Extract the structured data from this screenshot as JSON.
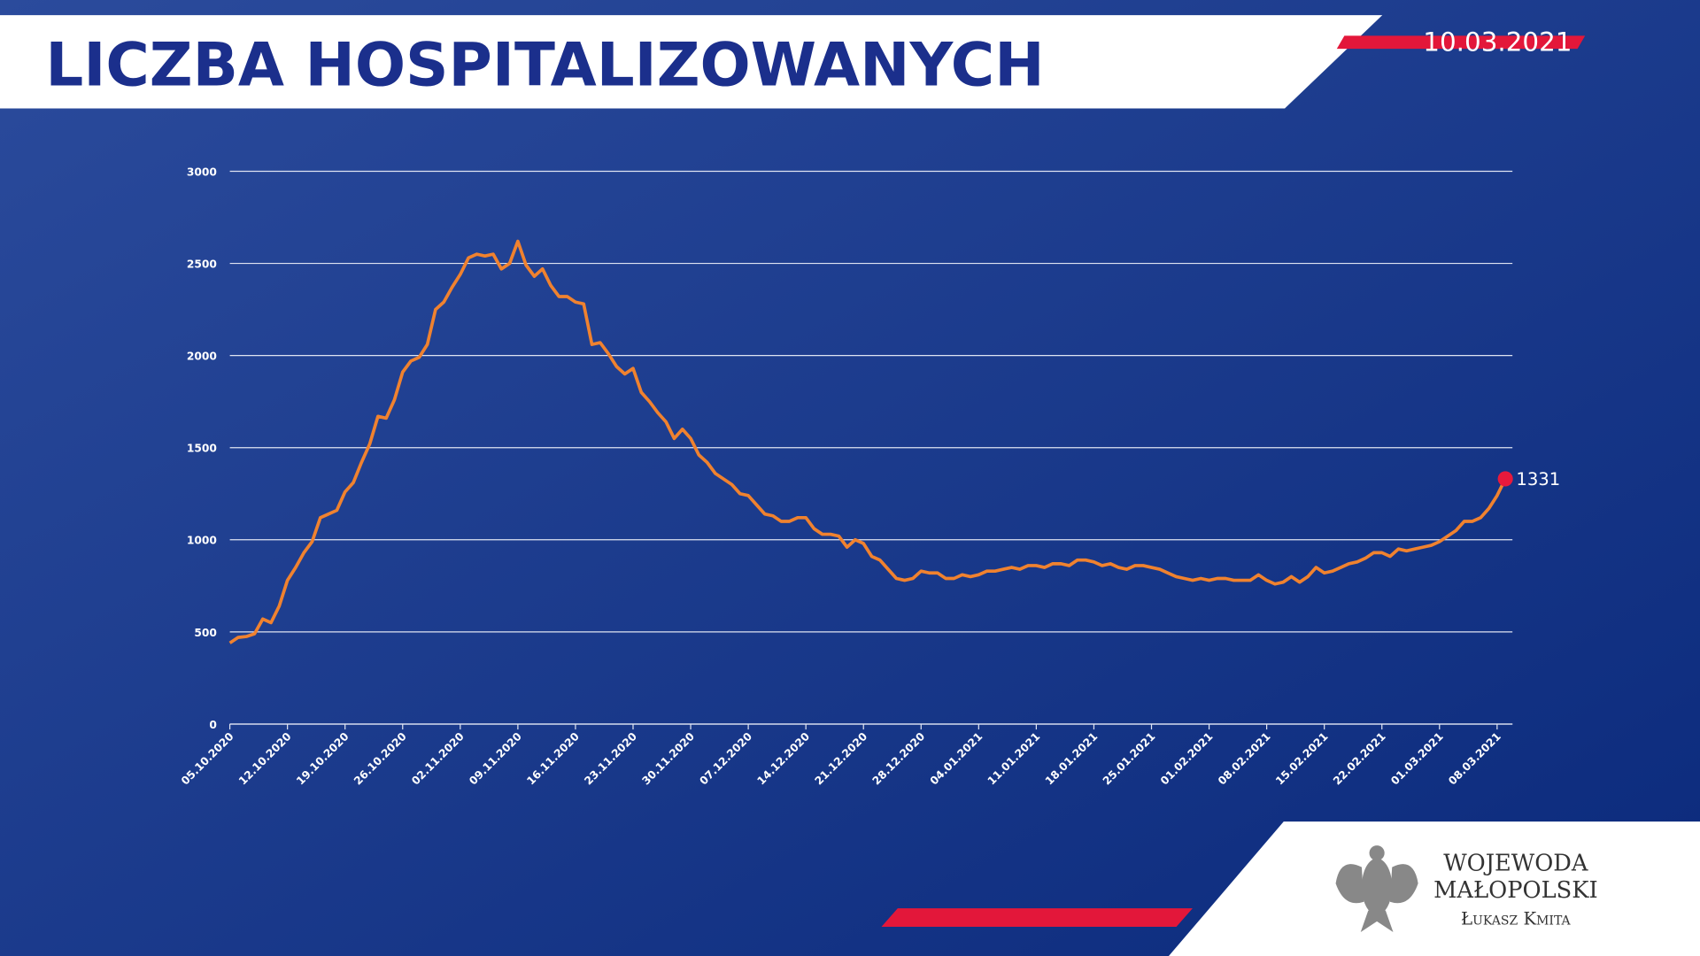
{
  "header": {
    "title": "LICZBA HOSPITALIZOWANYCH",
    "date": "10.03.2021"
  },
  "footer": {
    "line1": "WOJEWODA",
    "line2": "MAŁOPOLSKI",
    "line3": "Łukasz Kmita"
  },
  "chart_data": {
    "type": "line",
    "color": "#f0822f",
    "marker_color": "#e8193c",
    "label_last": true,
    "grid": true,
    "ylim": [
      0,
      3000
    ],
    "yticks": [
      0,
      500,
      1000,
      1500,
      2000,
      2500,
      3000
    ],
    "xticks": [
      "05.10.2020",
      "12.10.2020",
      "19.10.2020",
      "26.10.2020",
      "02.11.2020",
      "09.11.2020",
      "16.11.2020",
      "23.11.2020",
      "30.11.2020",
      "07.12.2020",
      "14.12.2020",
      "21.12.2020",
      "28.12.2020",
      "04.01.2021",
      "11.01.2021",
      "18.01.2021",
      "25.01.2021",
      "01.02.2021",
      "08.02.2021",
      "15.02.2021",
      "22.02.2021",
      "01.03.2021",
      "08.03.2021"
    ],
    "x": [
      "05.10.2020",
      "06.10.2020",
      "07.10.2020",
      "08.10.2020",
      "09.10.2020",
      "10.10.2020",
      "11.10.2020",
      "12.10.2020",
      "13.10.2020",
      "14.10.2020",
      "15.10.2020",
      "16.10.2020",
      "17.10.2020",
      "18.10.2020",
      "19.10.2020",
      "20.10.2020",
      "21.10.2020",
      "22.10.2020",
      "23.10.2020",
      "24.10.2020",
      "25.10.2020",
      "26.10.2020",
      "27.10.2020",
      "28.10.2020",
      "29.10.2020",
      "30.10.2020",
      "31.10.2020",
      "01.11.2020",
      "02.11.2020",
      "03.11.2020",
      "04.11.2020",
      "05.11.2020",
      "06.11.2020",
      "07.11.2020",
      "08.11.2020",
      "09.11.2020",
      "10.11.2020",
      "11.11.2020",
      "12.11.2020",
      "13.11.2020",
      "14.11.2020",
      "15.11.2020",
      "16.11.2020",
      "17.11.2020",
      "18.11.2020",
      "19.11.2020",
      "20.11.2020",
      "21.11.2020",
      "22.11.2020",
      "23.11.2020",
      "24.11.2020",
      "25.11.2020",
      "26.11.2020",
      "27.11.2020",
      "28.11.2020",
      "29.11.2020",
      "30.11.2020",
      "01.12.2020",
      "02.12.2020",
      "03.12.2020",
      "04.12.2020",
      "05.12.2020",
      "06.12.2020",
      "07.12.2020",
      "08.12.2020",
      "09.12.2020",
      "10.12.2020",
      "11.12.2020",
      "12.12.2020",
      "13.12.2020",
      "14.12.2020",
      "15.12.2020",
      "16.12.2020",
      "17.12.2020",
      "18.12.2020",
      "19.12.2020",
      "20.12.2020",
      "21.12.2020",
      "22.12.2020",
      "23.12.2020",
      "24.12.2020",
      "25.12.2020",
      "26.12.2020",
      "27.12.2020",
      "28.12.2020",
      "29.12.2020",
      "30.12.2020",
      "31.12.2020",
      "01.01.2021",
      "02.01.2021",
      "03.01.2021",
      "04.01.2021",
      "05.01.2021",
      "06.01.2021",
      "07.01.2021",
      "08.01.2021",
      "09.01.2021",
      "10.01.2021",
      "11.01.2021",
      "12.01.2021",
      "13.01.2021",
      "14.01.2021",
      "15.01.2021",
      "16.01.2021",
      "17.01.2021",
      "18.01.2021",
      "19.01.2021",
      "20.01.2021",
      "21.01.2021",
      "22.01.2021",
      "23.01.2021",
      "24.01.2021",
      "25.01.2021",
      "26.01.2021",
      "27.01.2021",
      "28.01.2021",
      "29.01.2021",
      "30.01.2021",
      "31.01.2021",
      "01.02.2021",
      "02.02.2021",
      "03.02.2021",
      "04.02.2021",
      "05.02.2021",
      "06.02.2021",
      "07.02.2021",
      "08.02.2021",
      "09.02.2021",
      "10.02.2021",
      "11.02.2021",
      "12.02.2021",
      "13.02.2021",
      "14.02.2021",
      "15.02.2021",
      "16.02.2021",
      "17.02.2021",
      "18.02.2021",
      "19.02.2021",
      "20.02.2021",
      "21.02.2021",
      "22.02.2021",
      "23.02.2021",
      "24.02.2021",
      "25.02.2021",
      "26.02.2021",
      "27.02.2021",
      "28.02.2021",
      "01.03.2021",
      "02.03.2021",
      "03.03.2021",
      "04.03.2021",
      "05.03.2021",
      "06.03.2021",
      "07.03.2021",
      "08.03.2021",
      "09.03.2021"
    ],
    "values": [
      440,
      470,
      475,
      490,
      570,
      550,
      640,
      780,
      850,
      930,
      990,
      1120,
      1140,
      1160,
      1260,
      1310,
      1420,
      1520,
      1670,
      1660,
      1760,
      1910,
      1970,
      1990,
      2060,
      2250,
      2290,
      2370,
      2440,
      2530,
      2550,
      2540,
      2550,
      2470,
      2500,
      2620,
      2490,
      2430,
      2470,
      2380,
      2320,
      2320,
      2290,
      2280,
      2060,
      2070,
      2010,
      1940,
      1900,
      1930,
      1800,
      1750,
      1690,
      1640,
      1550,
      1600,
      1550,
      1460,
      1420,
      1360,
      1330,
      1300,
      1250,
      1240,
      1190,
      1140,
      1130,
      1100,
      1100,
      1120,
      1120,
      1060,
      1030,
      1030,
      1020,
      960,
      1000,
      980,
      910,
      890,
      840,
      790,
      780,
      790,
      830,
      820,
      820,
      790,
      790,
      810,
      800,
      810,
      830,
      830,
      840,
      850,
      840,
      860,
      860,
      850,
      870,
      870,
      860,
      890,
      890,
      880,
      860,
      870,
      850,
      840,
      860,
      860,
      850,
      840,
      820,
      800,
      790,
      780,
      790,
      780,
      790,
      790,
      780,
      780,
      780,
      810,
      780,
      760,
      770,
      800,
      770,
      800,
      850,
      820,
      830,
      850,
      870,
      880,
      900,
      930,
      930,
      910,
      950,
      940,
      950,
      960,
      970,
      990,
      1020,
      1050,
      1100,
      1100,
      1120,
      1170,
      1240,
      1331
    ]
  }
}
